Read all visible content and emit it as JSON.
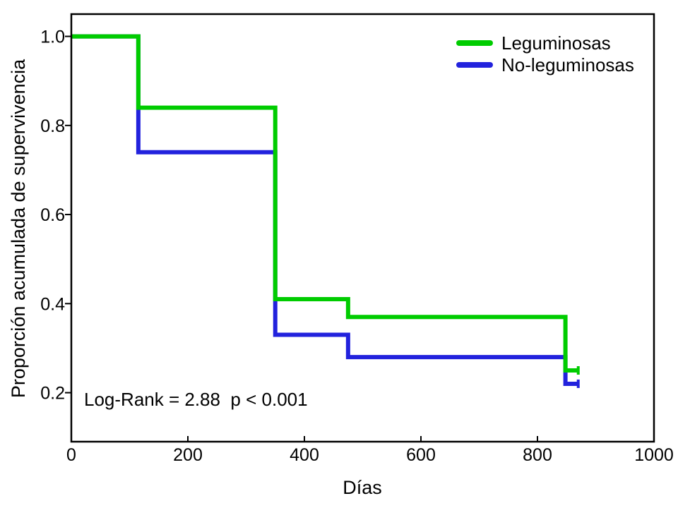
{
  "chart_data": {
    "type": "line",
    "chart_style": "kaplan-meier-step-survival",
    "title": "",
    "xlabel": "Días",
    "ylabel": "Proporción acumulada de supervivencia",
    "xlim": [
      0,
      1000
    ],
    "ylim": [
      0.09,
      1.05
    ],
    "grid": false,
    "legend_position": "top-right-inside",
    "x_ticks": [
      {
        "value": 0,
        "label": "0"
      },
      {
        "value": 200,
        "label": "200"
      },
      {
        "value": 400,
        "label": "400"
      },
      {
        "value": 600,
        "label": "600"
      },
      {
        "value": 800,
        "label": "800"
      },
      {
        "value": 1000,
        "label": "1000"
      }
    ],
    "y_ticks": [
      {
        "value": 1.0,
        "label": "1.0"
      },
      {
        "value": 0.8,
        "label": "0.8"
      },
      {
        "value": 0.6,
        "label": "0.6"
      },
      {
        "value": 0.4,
        "label": "0.4"
      },
      {
        "value": 0.2,
        "label": "0.2"
      }
    ],
    "annotation": {
      "text": "Log-Rank = 2.88  p < 0.001"
    },
    "series": [
      {
        "name": "No-leguminosas",
        "color": "#2222DD",
        "steps": [
          {
            "x": 0,
            "y": 1.0
          },
          {
            "x": 115,
            "y": 0.74
          },
          {
            "x": 350,
            "y": 0.33
          },
          {
            "x": 475,
            "y": 0.28
          },
          {
            "x": 848,
            "y": 0.22
          }
        ],
        "end_x": 870,
        "censor_x": 870
      },
      {
        "name": "Leguminosas",
        "color": "#00CC00",
        "steps": [
          {
            "x": 0,
            "y": 1.0
          },
          {
            "x": 115,
            "y": 0.84
          },
          {
            "x": 350,
            "y": 0.41
          },
          {
            "x": 475,
            "y": 0.37
          },
          {
            "x": 848,
            "y": 0.25
          }
        ],
        "end_x": 870,
        "censor_x": 870
      }
    ]
  }
}
